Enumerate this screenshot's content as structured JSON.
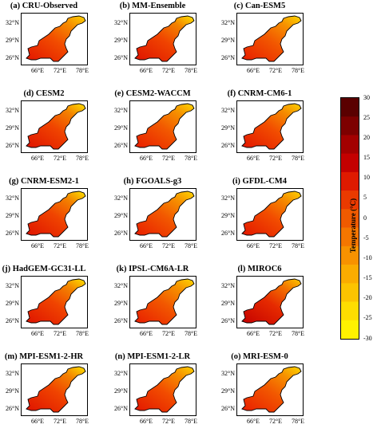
{
  "panels": [
    {
      "title": "(a) CRU-Observed",
      "variant": 0
    },
    {
      "title": "(b) MM-Ensemble",
      "variant": 1
    },
    {
      "title": "(c) Can-ESM5",
      "variant": 2
    },
    {
      "title": "(d) CESM2",
      "variant": 1
    },
    {
      "title": "(e) CESM2-WACCM",
      "variant": 2
    },
    {
      "title": "(f) CNRM-CM6-1",
      "variant": 0
    },
    {
      "title": "(g) CNRM-ESM2-1",
      "variant": 1
    },
    {
      "title": "(h) FGOALS-g3",
      "variant": 2
    },
    {
      "title": "(i) GFDL-CM4",
      "variant": 0
    },
    {
      "title": "(j) HadGEM-GC31-LL",
      "variant": 1
    },
    {
      "title": "(k) IPSL-CM6A-LR",
      "variant": 2
    },
    {
      "title": "(l) MIROC6",
      "variant": 3
    },
    {
      "title": "(m) MPI-ESM1-2-HR",
      "variant": 1
    },
    {
      "title": "(n) MPI-ESM1-2-LR",
      "variant": 0
    },
    {
      "title": "(o) MRI-ESM-0",
      "variant": 2
    }
  ],
  "lat_labels": [
    "32°N",
    "29°N",
    "26°N"
  ],
  "lon_labels": [
    "66°E",
    "72°E",
    "78°E"
  ],
  "colorbar": {
    "title": "Temperature (°C)",
    "ticks": [
      "30",
      "25",
      "20",
      "15",
      "10",
      "5",
      "0",
      "-5",
      "-10",
      "-15",
      "-20",
      "-25",
      "-30"
    ],
    "colors": [
      "#5a0000",
      "#7d0000",
      "#a30000",
      "#c40000",
      "#df1a00",
      "#ea3a00",
      "#f05a00",
      "#f47600",
      "#f79200",
      "#faac00",
      "#fcc400",
      "#fedd00",
      "#fff200"
    ]
  }
}
